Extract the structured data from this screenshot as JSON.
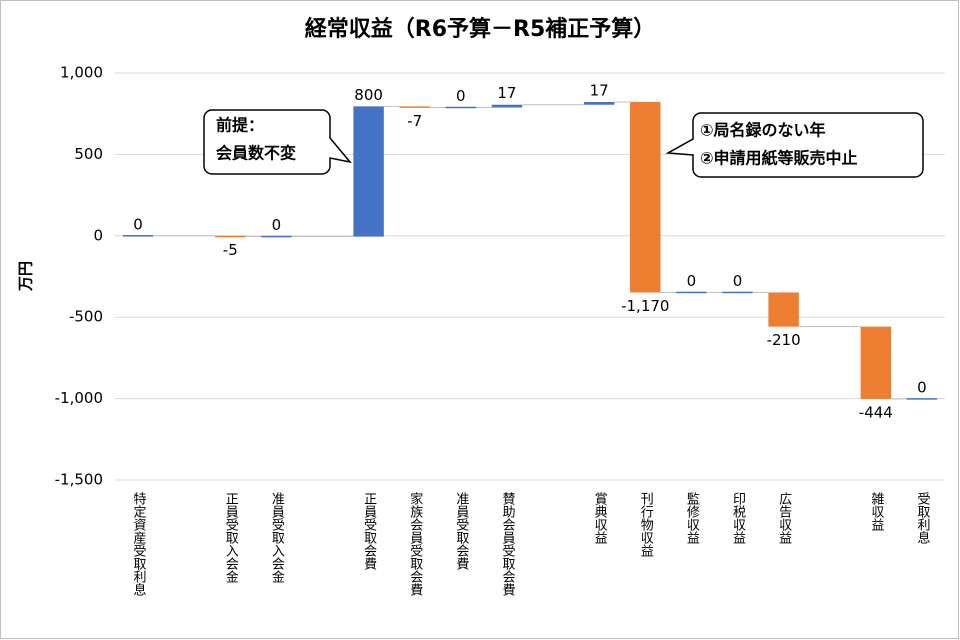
{
  "chart_data": {
    "type": "waterfall",
    "title": "経常収益（R6予算－R5補正予算）",
    "y_label": "万円",
    "categories": [
      "特定資産受取利息",
      null,
      "正員受取入会金",
      "准員受取入会金",
      null,
      "正員受取会費",
      "家族会員受取会費",
      "准員受取会費",
      "賛助会員受取会費",
      null,
      "賞典収益",
      "刊行物収益",
      "監修収益",
      "印税収益",
      "広告収益",
      null,
      "雑収益",
      "受取利息"
    ],
    "values": [
      0,
      null,
      -5,
      0,
      null,
      800,
      -7,
      0,
      17,
      null,
      17,
      -1170,
      0,
      0,
      -210,
      null,
      -444,
      0
    ],
    "value_labels": [
      "0",
      null,
      "-5",
      "0",
      null,
      "800",
      "-7",
      "0",
      "17",
      null,
      "17",
      "-1,170",
      "0",
      "0",
      "-210",
      null,
      "-444",
      "0"
    ],
    "increase_color": "#4472c4",
    "decrease_color": "#ed7d31",
    "ylim": [
      -1500,
      1000
    ],
    "yticks": [
      {
        "value": -1500,
        "label": "-1,500"
      },
      {
        "value": -1000,
        "label": "-1,000"
      },
      -500,
      0,
      500,
      {
        "value": 1000,
        "label": "1,000"
      }
    ],
    "grid": true,
    "annotations": [
      {
        "lines": [
          "前提：",
          "会員数不変"
        ]
      },
      {
        "lines": [
          "①局名録のない年",
          "②申請用紙等販売中止"
        ]
      }
    ]
  }
}
